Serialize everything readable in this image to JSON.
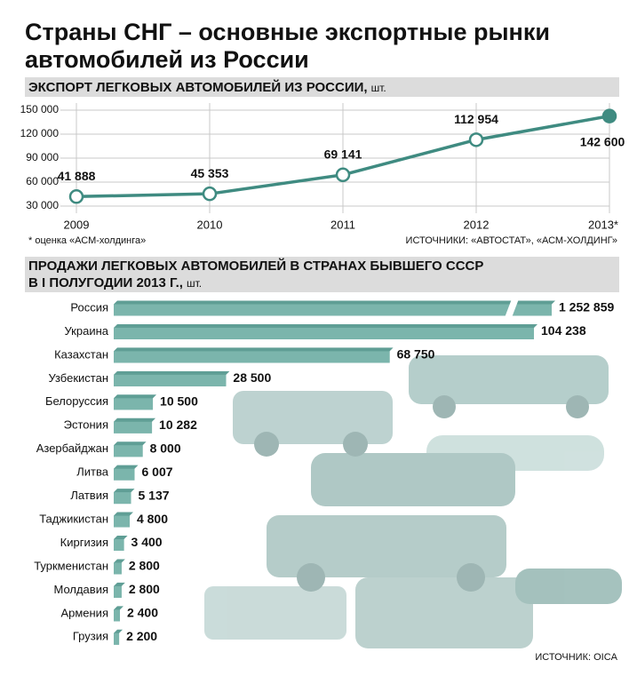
{
  "header": {
    "title_lines": [
      "Страны СНГ – основные экспортные рынки",
      "автомобилей из России"
    ]
  },
  "chart_data": [
    {
      "type": "line",
      "title": "ЭКСПОРТ ЛЕГКОВЫХ АВТОМОБИЛЕЙ ИЗ РОССИИ,",
      "unit": "шт.",
      "categories": [
        "2009",
        "2010",
        "2011",
        "2012",
        "2013*"
      ],
      "series": [
        {
          "name": "Экспорт",
          "color": "#3f8b81",
          "values": [
            41888,
            45353,
            69141,
            112954,
            142600
          ],
          "value_labels": [
            "41 888",
            "45 353",
            "69 141",
            "112 954",
            "142 600"
          ]
        }
      ],
      "ylim": [
        30000,
        150000
      ],
      "yticks": [
        {
          "value": 30000,
          "label": "30 000"
        },
        {
          "value": 60000,
          "label": "60 000"
        },
        {
          "value": 90000,
          "label": "90 000"
        },
        {
          "value": 120000,
          "label": "120 000"
        },
        {
          "value": 150000,
          "label": "150 000"
        }
      ],
      "grid": true,
      "note": "* оценка «АСМ-холдинга»",
      "source": "ИСТОЧНИКИ: «АВТОСТАТ», «АСМ-ХОЛДИНГ»"
    },
    {
      "type": "hbar",
      "title_lines": [
        "ПРОДАЖИ ЛЕГКОВЫХ АВТОМОБИЛЕЙ В СТРАНАХ БЫВШЕГО СССР",
        "В I ПОЛУГОДИИ 2013 Г.,"
      ],
      "unit": "шт.",
      "categories": [
        "Россия",
        "Украина",
        "Казахстан",
        "Узбекистан",
        "Белоруссия",
        "Эстония",
        "Азербайджан",
        "Литва",
        "Латвия",
        "Таджикистан",
        "Киргизия",
        "Туркменистан",
        "Молдавия",
        "Армения",
        "Грузия"
      ],
      "values": [
        1252859,
        104238,
        68750,
        28500,
        10500,
        10282,
        8000,
        6007,
        5137,
        4800,
        3400,
        2800,
        2800,
        2400,
        2200
      ],
      "value_labels": [
        "1 252 859",
        "104 238",
        "68 750",
        "28 500",
        "10 500",
        "10 282",
        "8 000",
        "6 007",
        "5 137",
        "4 800",
        "3 400",
        "2 800",
        "2 800",
        "2 400",
        "2 200"
      ],
      "color": "#5f9e95",
      "source": "ИСТОЧНИК: OICA"
    }
  ]
}
